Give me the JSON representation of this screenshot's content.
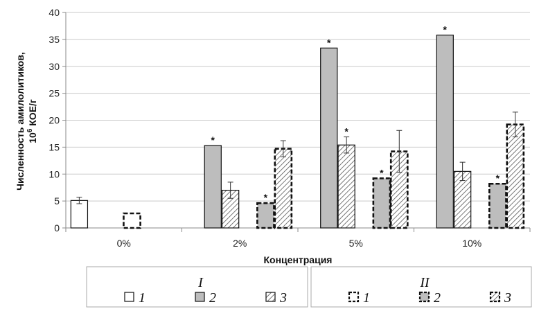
{
  "chart_data": {
    "type": "bar",
    "xlabel": "Концентрация",
    "ylabel_line1": "Численность амилолитиков,",
    "ylabel_line2_prefix": "10",
    "ylabel_line2_sup": "6",
    "ylabel_line2_suffix": " КОЕ/г",
    "ylim": [
      0,
      40
    ],
    "yticks": [
      0,
      5,
      10,
      15,
      20,
      25,
      30,
      35,
      40
    ],
    "categories": [
      "0%",
      "2%",
      "5%",
      "10%"
    ],
    "series": [
      {
        "group": "I",
        "name": "1",
        "style": "white-solid",
        "values": [
          5.1,
          null,
          null,
          null
        ],
        "errors": [
          0.6,
          null,
          null,
          null
        ],
        "marks": [
          "",
          "",
          "",
          ""
        ]
      },
      {
        "group": "I",
        "name": "2",
        "style": "gray-solid",
        "values": [
          null,
          15.3,
          33.4,
          35.8
        ],
        "errors": [
          null,
          0,
          0,
          0
        ],
        "marks": [
          "",
          "*",
          "*",
          "*"
        ]
      },
      {
        "group": "I",
        "name": "3",
        "style": "hatch-solid",
        "values": [
          null,
          7.0,
          15.4,
          10.5
        ],
        "errors": [
          null,
          1.5,
          1.5,
          1.7
        ],
        "marks": [
          "",
          "",
          "*",
          ""
        ]
      },
      {
        "group": "II",
        "name": "1",
        "style": "white-dashed",
        "values": [
          2.7,
          null,
          null,
          null
        ],
        "errors": [
          0,
          null,
          null,
          null
        ],
        "marks": [
          "",
          "",
          "",
          ""
        ]
      },
      {
        "group": "II",
        "name": "2",
        "style": "gray-dashed",
        "values": [
          null,
          4.6,
          9.2,
          8.2
        ],
        "errors": [
          null,
          0,
          0,
          0
        ],
        "marks": [
          "",
          "*",
          "*",
          "*"
        ]
      },
      {
        "group": "II",
        "name": "3",
        "style": "hatch-dashed",
        "values": [
          null,
          14.7,
          14.2,
          19.2
        ],
        "errors": [
          null,
          1.5,
          3.9,
          2.3
        ],
        "marks": [
          "",
          "",
          "",
          ""
        ]
      }
    ],
    "legend": {
      "placement": "bottom",
      "groups": [
        {
          "title": "I",
          "items": [
            {
              "label": "1",
              "style": "white-solid"
            },
            {
              "label": "2",
              "style": "gray-solid"
            },
            {
              "label": "3",
              "style": "hatch-solid"
            }
          ]
        },
        {
          "title": "II",
          "items": [
            {
              "label": "1",
              "style": "white-dashed"
            },
            {
              "label": "2",
              "style": "gray-dashed"
            },
            {
              "label": "3",
              "style": "hatch-dashed"
            }
          ]
        }
      ]
    },
    "colors": {
      "gray": "#bdbdbd",
      "white": "#ffffff",
      "stroke": "#111111",
      "axis": "#8a8a8a"
    }
  }
}
